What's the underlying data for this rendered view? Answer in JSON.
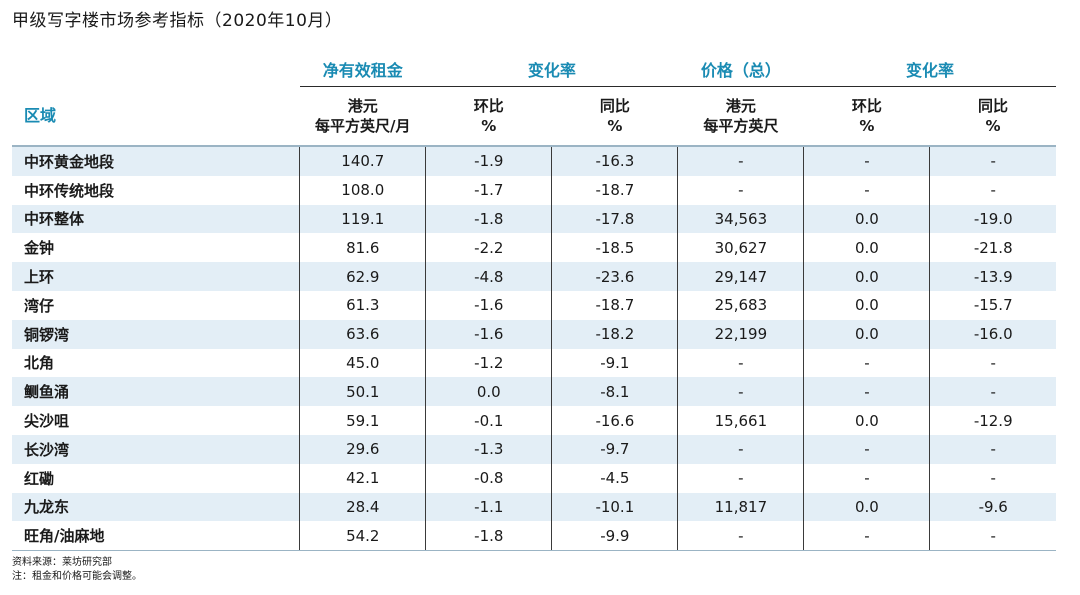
{
  "title": "甲级写字楼市场参考指标（2020年10月）",
  "chart_data": {
    "type": "table",
    "group_headers": [
      "净有效租金",
      "变化率",
      "价格（总）",
      "变化率"
    ],
    "columns": [
      {
        "line1": "区域",
        "line2": ""
      },
      {
        "line1": "港元",
        "line2": "每平方英尺/月"
      },
      {
        "line1": "环比",
        "line2": "%"
      },
      {
        "line1": "同比",
        "line2": "%"
      },
      {
        "line1": "港元",
        "line2": "每平方英尺"
      },
      {
        "line1": "环比",
        "line2": "%"
      },
      {
        "line1": "同比",
        "line2": "%"
      }
    ],
    "rows": [
      [
        "中环黄金地段",
        "140.7",
        "-1.9",
        "-16.3",
        "-",
        "-",
        "-"
      ],
      [
        "中环传统地段",
        "108.0",
        "-1.7",
        "-18.7",
        "-",
        "-",
        "-"
      ],
      [
        "中环整体",
        "119.1",
        "-1.8",
        "-17.8",
        "34,563",
        "0.0",
        "-19.0"
      ],
      [
        "金钟",
        "81.6",
        "-2.2",
        "-18.5",
        "30,627",
        "0.0",
        "-21.8"
      ],
      [
        "上环",
        "62.9",
        "-4.8",
        "-23.6",
        "29,147",
        "0.0",
        "-13.9"
      ],
      [
        "湾仔",
        "61.3",
        "-1.6",
        "-18.7",
        "25,683",
        "0.0",
        "-15.7"
      ],
      [
        "铜锣湾",
        "63.6",
        "-1.6",
        "-18.2",
        "22,199",
        "0.0",
        "-16.0"
      ],
      [
        "北角",
        "45.0",
        "-1.2",
        "-9.1",
        "-",
        "-",
        "-"
      ],
      [
        "鲗鱼涌",
        "50.1",
        "0.0",
        "-8.1",
        "-",
        "-",
        "-"
      ],
      [
        "尖沙咀",
        "59.1",
        "-0.1",
        "-16.6",
        "15,661",
        "0.0",
        "-12.9"
      ],
      [
        "长沙湾",
        "29.6",
        "-1.3",
        "-9.7",
        "-",
        "-",
        "-"
      ],
      [
        "红磡",
        "42.1",
        "-0.8",
        "-4.5",
        "-",
        "-",
        "-"
      ],
      [
        "九龙东",
        "28.4",
        "-1.1",
        "-10.1",
        "11,817",
        "0.0",
        "-9.6"
      ],
      [
        "旺角/油麻地",
        "54.2",
        "-1.8",
        "-9.9",
        "-",
        "-",
        "-"
      ]
    ]
  },
  "notes": {
    "source": "资料来源：莱坊研究部",
    "note": "注：租金和价格可能会调整。"
  },
  "colors": {
    "accent": "#1a8bb3",
    "row_stripe": "#e3eef6"
  }
}
